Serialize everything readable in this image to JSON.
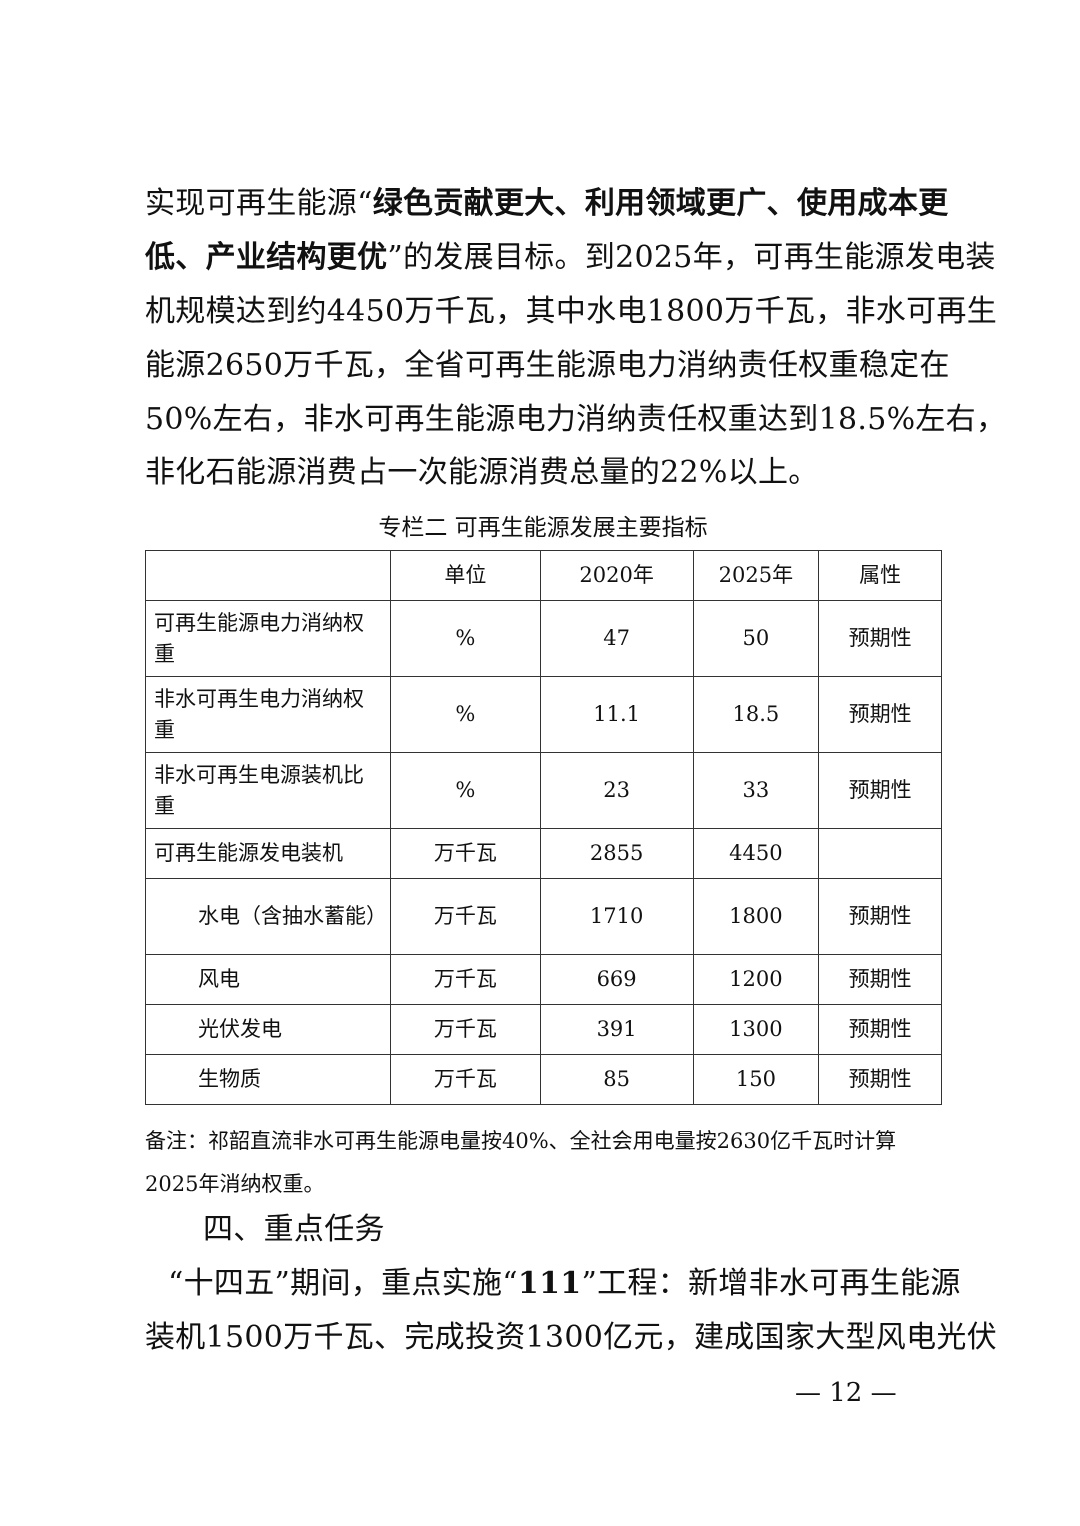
{
  "body_lines": [
    [
      {
        "t": "实现可再生能源“",
        "b": false
      },
      {
        "t": "绿色贡献更大、利用领域更广、使用成本更",
        "b": true
      }
    ],
    [
      {
        "t": "低、产业结构更优",
        "b": true
      },
      {
        "t": "”的发展目标。到2025年，可再生能源发电装",
        "b": false
      }
    ],
    [
      {
        "t": "机规模达到约4450万千瓦，其中水电1800万千瓦，非水可再生",
        "b": false
      }
    ],
    [
      {
        "t": "能源2650万千瓦，全省可再生能源电力消纳责任权重稳定在",
        "b": false
      }
    ],
    [
      {
        "t": "50%左右，非水可再生能源电力消纳责任权重达到18.5%左右，",
        "b": false
      }
    ],
    [
      {
        "t": "非化石能源消费占一次能源消费总量的22%以上。",
        "b": false
      }
    ]
  ],
  "table": {
    "caption": "专栏二  可再生能源发展主要指标",
    "headers": [
      "",
      "单位",
      "2020年",
      "2025年",
      "属性"
    ],
    "rows": [
      {
        "name": "可再生能源电力消纳权重",
        "unit": "%",
        "y2020": "47",
        "y2025": "50",
        "attr": "预期性"
      },
      {
        "name": "非水可再生电力消纳权重",
        "unit": "%",
        "y2020": "11.1",
        "y2025": "18.5",
        "attr": "预期性"
      },
      {
        "name": "非水可再生电源装机比重",
        "unit": "%",
        "y2020": "23",
        "y2025": "33",
        "attr": "预期性"
      },
      {
        "name": "可再生能源发电装机",
        "unit": "万千瓦",
        "y2020": "2855",
        "y2025": "4450",
        "attr": ""
      },
      {
        "name": "水电（含抽水蓄能）",
        "unit": "万千瓦",
        "y2020": "1710",
        "y2025": "1800",
        "attr": "预期性"
      },
      {
        "name": "风电",
        "unit": "万千瓦",
        "y2020": "669",
        "y2025": "1200",
        "attr": "预期性"
      },
      {
        "name": "光伏发电",
        "unit": "万千瓦",
        "y2020": "391",
        "y2025": "1300",
        "attr": "预期性"
      },
      {
        "name": "生物质",
        "unit": "万千瓦",
        "y2020": "85",
        "y2025": "150",
        "attr": "预期性"
      }
    ]
  },
  "note_lines": [
    "备注：祁韶直流非水可再生能源电量按40%、全社会用电量按2630亿千瓦时计算",
    "2025年消纳权重。"
  ],
  "section_heading": "四、重点任务",
  "para_lines": [
    [
      {
        "t": "“十四五”期间，重点实施“",
        "b": false
      },
      {
        "t": "111",
        "b": true
      },
      {
        "t": "”工程：新增非水可再生能源",
        "b": false
      }
    ],
    [
      {
        "t": "装机1500万千瓦、完成投资1300亿元，建成国家大型风电光伏",
        "b": false
      }
    ]
  ],
  "page_number": "— 12 —"
}
